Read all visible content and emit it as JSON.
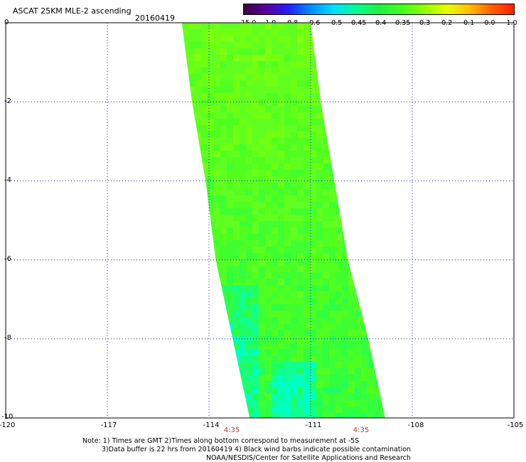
{
  "header": {
    "title": "ASCAT 25KM MLE-2 ascending",
    "date": "20160419"
  },
  "colorbar": {
    "labels": [
      "-15.0",
      "-1.0",
      "-0.8",
      "-0.6",
      "-0.5",
      "-0.45",
      "-0.4",
      "-0.35",
      "-0.3",
      "-0.2",
      "-0.1",
      "0.0",
      "1.0"
    ],
    "colors": [
      "#3a0040",
      "#5a00a0",
      "#2020ff",
      "#0090ff",
      "#00e0ff",
      "#00ff90",
      "#20f040",
      "#40ff20",
      "#90ff00",
      "#e8ff00",
      "#ffc000",
      "#ff6000",
      "#ff2000"
    ]
  },
  "chart_data": {
    "type": "heatmap",
    "title": "ASCAT 25KM MLE-2 ascending",
    "xlim": [
      -120,
      -105
    ],
    "ylim": [
      -10,
      0
    ],
    "x_ticks": [
      "-120",
      "-117",
      "-114",
      "-111",
      "-108",
      "-105"
    ],
    "y_ticks": [
      "0",
      "-2",
      "-4",
      "-6",
      "-8",
      "-10"
    ],
    "grid": true,
    "swath_edges": {
      "lat": [
        0,
        -2,
        -4,
        -6,
        -8,
        -10
      ],
      "west_lon": [
        -114.8,
        -114.5,
        -114.1,
        -113.8,
        -113.3,
        -112.8
      ],
      "east_lon": [
        -111.0,
        -110.7,
        -110.3,
        -109.9,
        -109.3,
        -108.8
      ]
    },
    "time_labels": [
      {
        "lon": -113.6,
        "text": "4:35"
      },
      {
        "lon": -109.8,
        "text": "4:35"
      }
    ],
    "dominant_value_range": [
      -0.35,
      -0.2
    ],
    "notes": [
      "Note: 1) Times are GMT 2)Times along bottom correspond to measurement at -5S",
      "3)Data buffer is 22 hrs from 20160419 4) Black wind barbs indicate possible contamination",
      "NOAA/NESDIS/Center for Satellite Applications and Research"
    ]
  }
}
